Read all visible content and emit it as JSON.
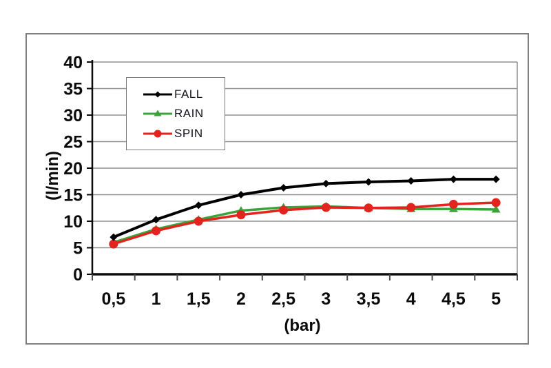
{
  "chart_data": {
    "type": "line",
    "x": [
      0.5,
      1,
      1.5,
      2,
      2.5,
      3,
      3.5,
      4,
      4.5,
      5
    ],
    "x_tick_labels": [
      "0,5",
      "1",
      "1,5",
      "2",
      "2,5",
      "3",
      "3,5",
      "4",
      "4,5",
      "5"
    ],
    "series": [
      {
        "name": "FALL",
        "color": "#000000",
        "marker": "diamond",
        "values": [
          7.0,
          10.3,
          13.0,
          15.0,
          16.3,
          17.1,
          17.4,
          17.6,
          17.9,
          17.9
        ]
      },
      {
        "name": "RAIN",
        "color": "#3aa33a",
        "marker": "triangle",
        "values": [
          6.0,
          8.5,
          10.3,
          12.0,
          12.6,
          12.8,
          12.5,
          12.3,
          12.3,
          12.2
        ]
      },
      {
        "name": "SPIN",
        "color": "#e2231e",
        "marker": "circle",
        "values": [
          5.7,
          8.2,
          10.0,
          11.2,
          12.1,
          12.6,
          12.5,
          12.6,
          13.2,
          13.5
        ]
      }
    ],
    "title": "",
    "xlabel": "(bar)",
    "ylabel": "(l/min)",
    "ylim": [
      0,
      40
    ],
    "yticks": [
      0,
      5,
      10,
      15,
      20,
      25,
      30,
      35,
      40
    ],
    "grid": true,
    "legend_position": "top-left-inside"
  },
  "colors": {
    "gridline": "#8f8f8f",
    "axis": "#0a0a0a",
    "tick": "#4a4a4a",
    "frame_border": "#7f7f7f",
    "background": "#ffffff",
    "tick_label": "#0c0c0c"
  }
}
